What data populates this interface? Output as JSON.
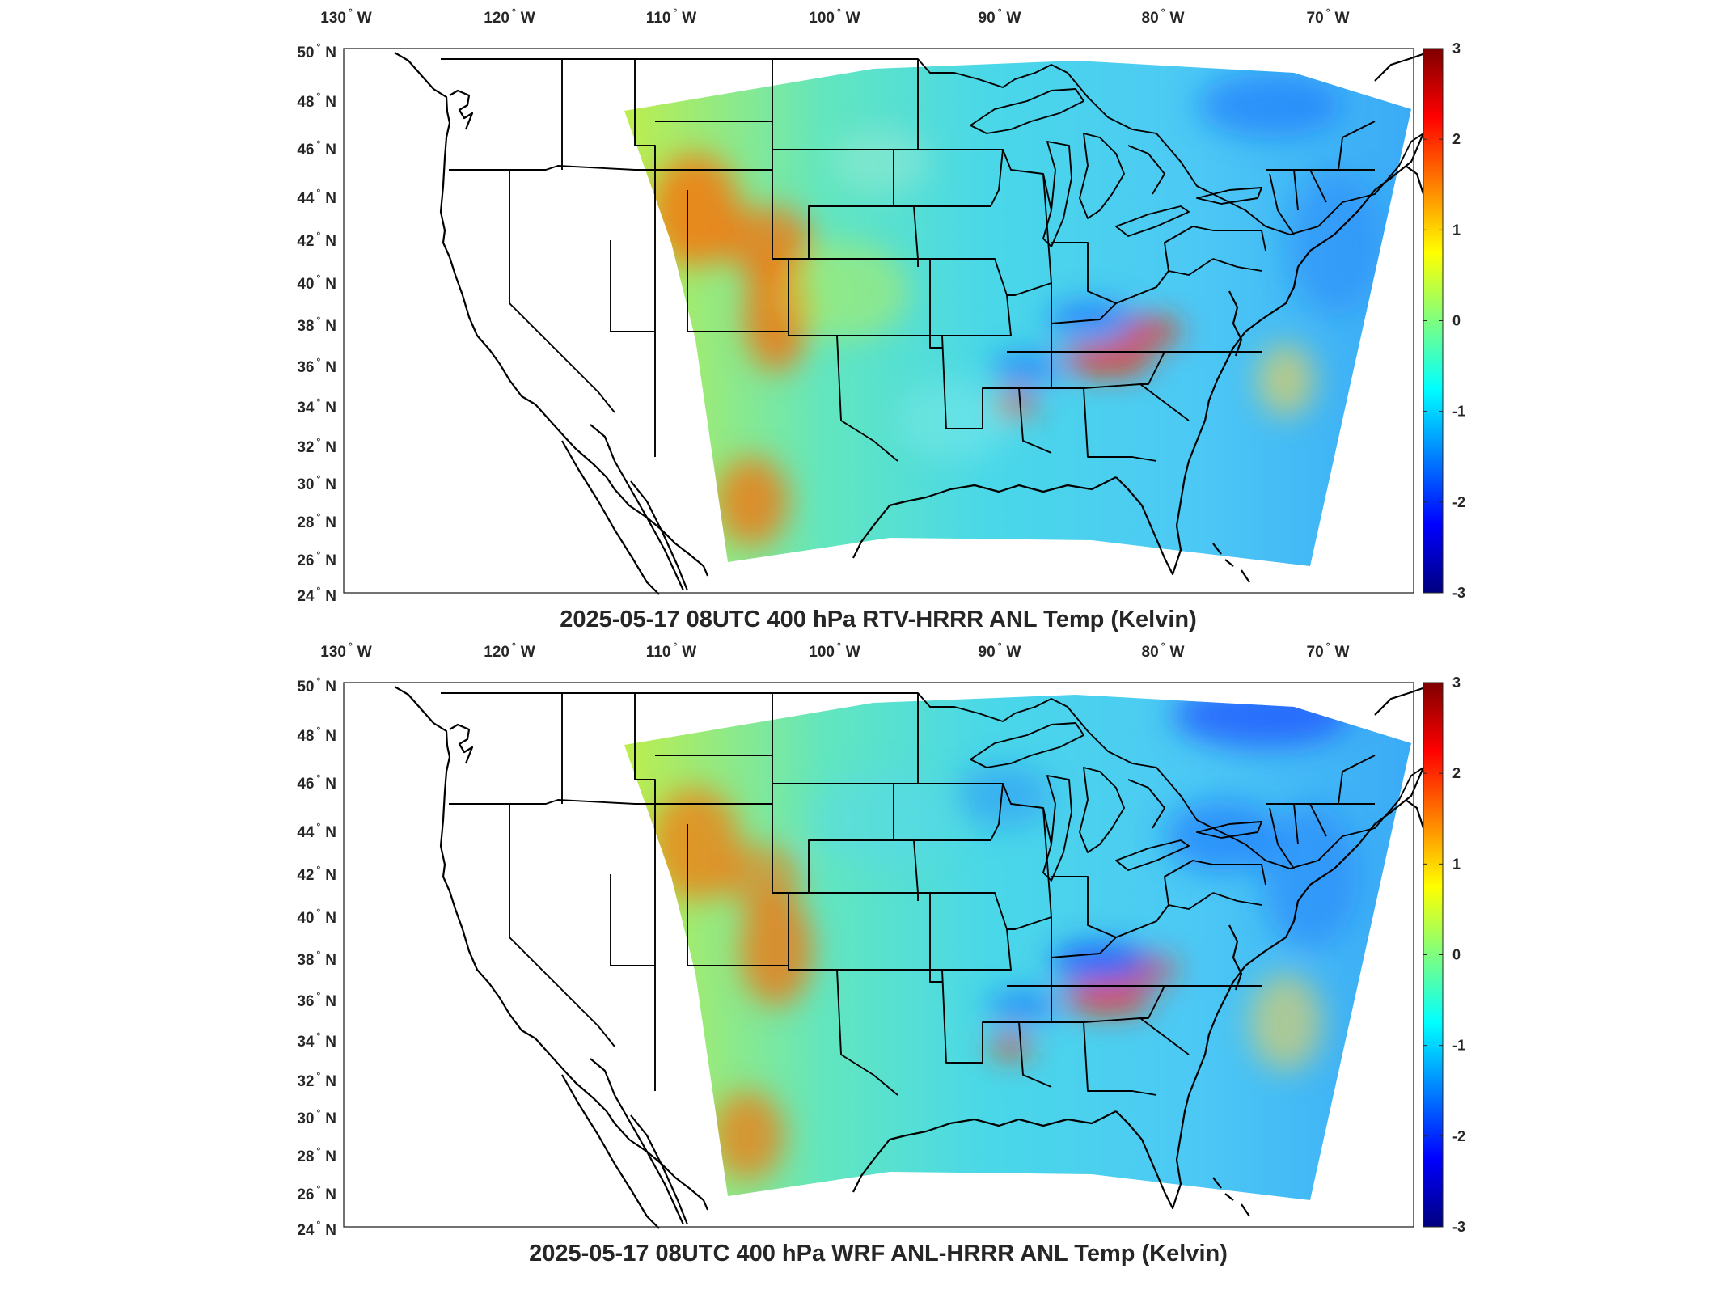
{
  "panels": [
    {
      "title": "2025-05-17 08UTC 400 hPa RTV-HRRR ANL Temp (Kelvin)",
      "lon_ticks": [
        "130",
        "120",
        "110",
        "100",
        "90",
        "80",
        "70"
      ],
      "lon_suffix": "W",
      "lat_ticks": [
        "50",
        "48",
        "46",
        "44",
        "42",
        "40",
        "38",
        "36",
        "34",
        "32",
        "30",
        "28",
        "26",
        "24"
      ],
      "lat_suffix": "N",
      "colorbar_ticks": [
        "3",
        "2",
        "1",
        "0",
        "-1",
        "-2",
        "-3"
      ]
    },
    {
      "title": "2025-05-17 08UTC 400 hPa WRF ANL-HRRR ANL Temp (Kelvin)",
      "lon_ticks": [
        "130",
        "120",
        "110",
        "100",
        "90",
        "80",
        "70"
      ],
      "lon_suffix": "W",
      "lat_ticks": [
        "50",
        "48",
        "46",
        "44",
        "42",
        "40",
        "38",
        "36",
        "34",
        "32",
        "30",
        "28",
        "26",
        "24"
      ],
      "lat_suffix": "N",
      "colorbar_ticks": [
        "3",
        "2",
        "1",
        "0",
        "-1",
        "-2",
        "-3"
      ]
    }
  ],
  "colors": {
    "colormap": [
      "#00007f",
      "#0000ff",
      "#007fff",
      "#00ffff",
      "#7fff7f",
      "#ffff00",
      "#ff7f00",
      "#ff0000",
      "#7f0000"
    ],
    "field_base": "#6fe7a0",
    "warm_anomaly": "#ff6a00",
    "cool_anomaly": "#1a6cff"
  },
  "colorbar_range": [
    -3,
    3
  ],
  "degree_symbol": "°"
}
